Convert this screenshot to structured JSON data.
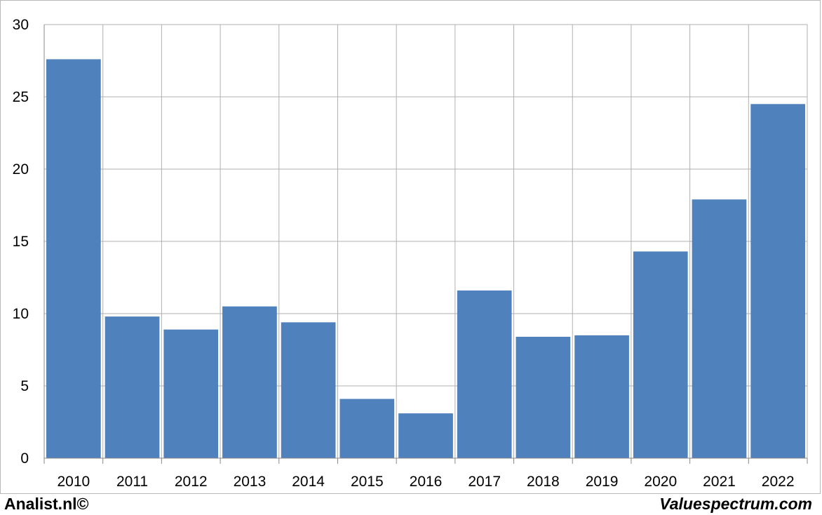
{
  "chart_data": {
    "type": "bar",
    "categories": [
      "2010",
      "2011",
      "2012",
      "2013",
      "2014",
      "2015",
      "2016",
      "2017",
      "2018",
      "2019",
      "2020",
      "2021",
      "2022"
    ],
    "values": [
      27.6,
      9.8,
      8.9,
      10.5,
      9.4,
      4.1,
      3.1,
      11.6,
      8.4,
      8.5,
      14.3,
      17.9,
      24.5
    ],
    "ylim": [
      0,
      30
    ],
    "yticks": [
      "0",
      "5",
      "10",
      "15",
      "20",
      "25",
      "30"
    ],
    "grid": true,
    "bar_color": "#4f81bd",
    "grid_color": "#b0b0b0"
  },
  "credits": {
    "left": "Analist.nl©",
    "right": "Valuespectrum.com"
  }
}
